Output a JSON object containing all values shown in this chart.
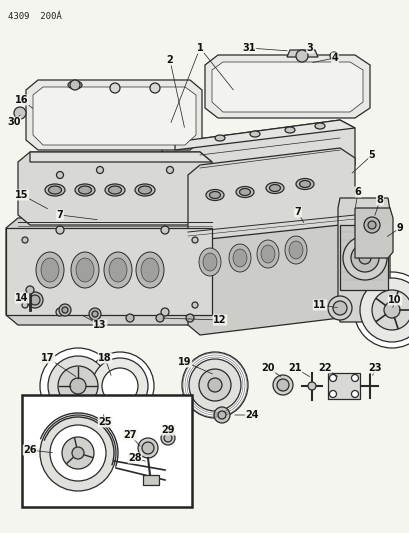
{
  "bg_color": "#f5f5f0",
  "fig_width": 4.1,
  "fig_height": 5.33,
  "dpi": 100,
  "header_text": "4309  200Á",
  "ec": "#2a2a2a",
  "lw_main": 0.9,
  "lw_thin": 0.5,
  "fc_cover": "#e8e8e4",
  "fc_block": "#dcdcd8",
  "fc_white": "#ffffff",
  "fc_light": "#f0f0ec"
}
